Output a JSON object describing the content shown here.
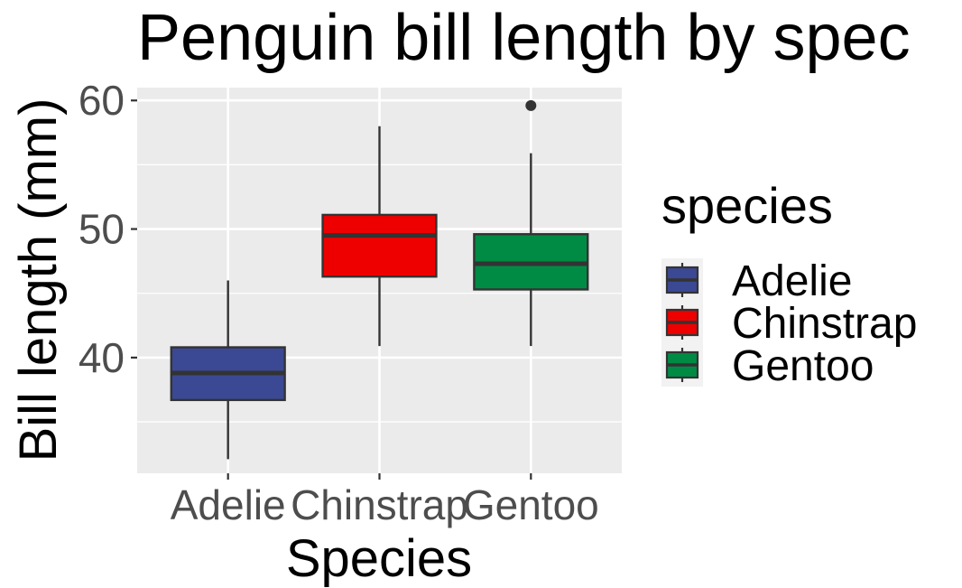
{
  "chart_data": {
    "type": "box",
    "title": "Penguin bill length by spec",
    "xlabel": "Species",
    "ylabel": "Bill length (mm)",
    "categories": [
      "Adelie",
      "Chinstrap",
      "Gentoo"
    ],
    "ylim": [
      31,
      61
    ],
    "yticks": [
      40,
      50,
      60
    ],
    "grid": true,
    "boxes": [
      {
        "category": "Adelie",
        "whisker_low": 32.1,
        "q1": 36.7,
        "median": 38.8,
        "q3": 40.8,
        "whisker_high": 46.0,
        "outliers": [],
        "color": "#3b4994"
      },
      {
        "category": "Chinstrap",
        "whisker_low": 40.9,
        "q1": 46.3,
        "median": 49.5,
        "q3": 51.1,
        "whisker_high": 58.0,
        "outliers": [],
        "color": "#ee0000"
      },
      {
        "category": "Gentoo",
        "whisker_low": 40.9,
        "q1": 45.3,
        "median": 47.3,
        "q3": 49.6,
        "whisker_high": 55.9,
        "outliers": [
          59.6
        ],
        "color": "#008b45"
      }
    ],
    "legend": {
      "title": "species",
      "position": "right",
      "entries": [
        {
          "label": "Adelie",
          "color": "#3b4994"
        },
        {
          "label": "Chinstrap",
          "color": "#ee0000"
        },
        {
          "label": "Gentoo",
          "color": "#008b45"
        }
      ]
    }
  }
}
